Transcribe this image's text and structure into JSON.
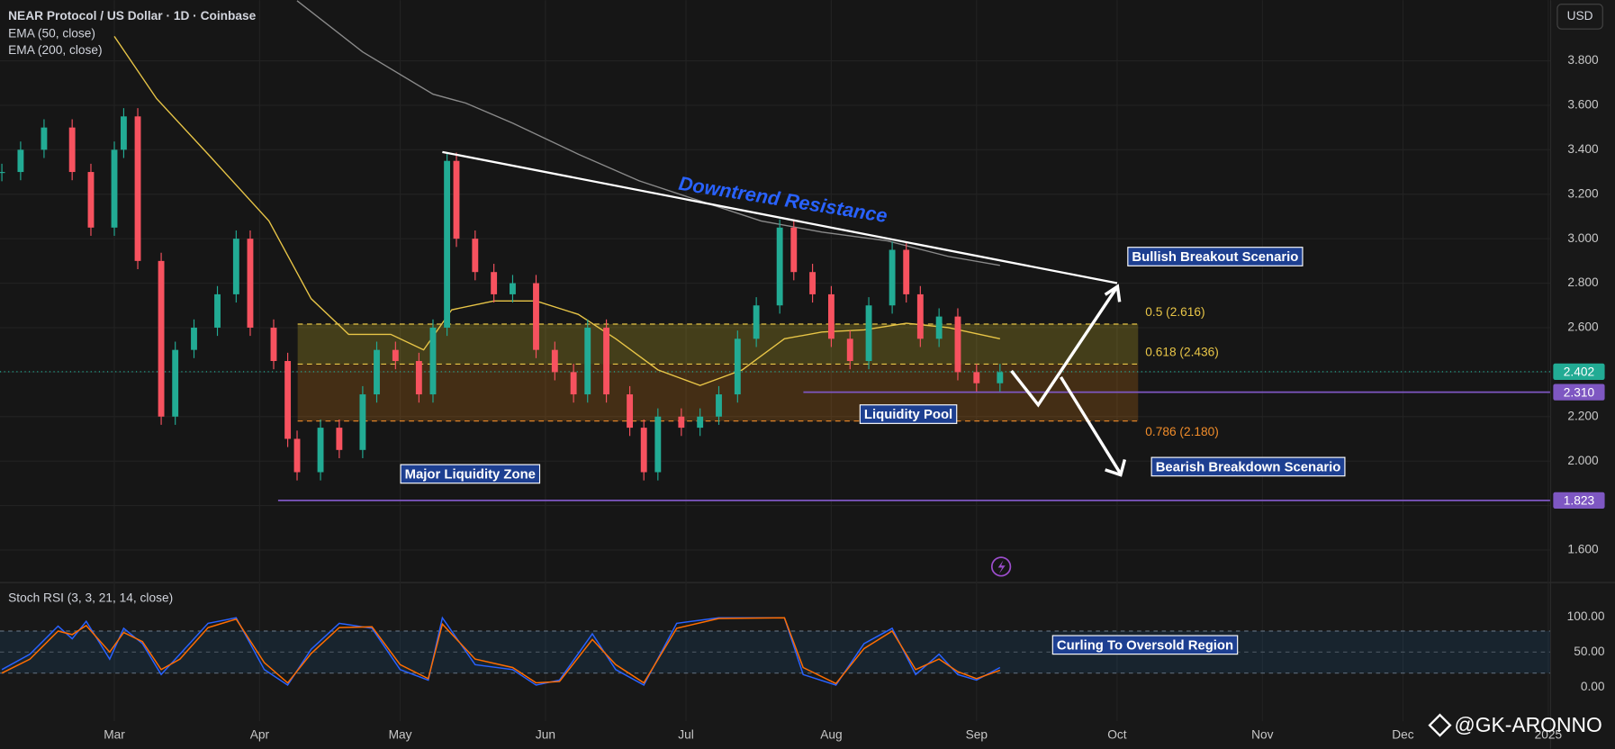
{
  "ui": {
    "currency": "USD",
    "watermark": "@GK-ARONNO"
  },
  "chart_data": [
    {
      "type": "candlestick",
      "title": "NEAR Protocol / US Dollar · 1D · Coinbase",
      "xlim": [
        -24.4,
        306.4
      ],
      "xticks": [
        {
          "value": 0,
          "label": "Mar"
        },
        {
          "value": 31,
          "label": "Apr"
        },
        {
          "value": 61,
          "label": "May"
        },
        {
          "value": 92,
          "label": "Jun"
        },
        {
          "value": 122,
          "label": "Jul"
        },
        {
          "value": 153,
          "label": "Aug"
        },
        {
          "value": 184,
          "label": "Sep"
        },
        {
          "value": 214,
          "label": "Oct"
        },
        {
          "value": 245,
          "label": "Nov"
        },
        {
          "value": 275,
          "label": "Dec"
        },
        {
          "value": 306,
          "label": "2025"
        }
      ],
      "ylim": [
        1.456,
        4.073
      ],
      "yticks": [
        {
          "value": 1.6,
          "label": "1.600"
        },
        {
          "value": 1.8,
          "label": "1.800"
        },
        {
          "value": 2.0,
          "label": "2.000"
        },
        {
          "value": 2.2,
          "label": "2.200"
        },
        {
          "value": 2.4,
          "label": "2.400"
        },
        {
          "value": 2.6,
          "label": "2.600"
        },
        {
          "value": 2.8,
          "label": "2.800"
        },
        {
          "value": 3.0,
          "label": "3.000"
        },
        {
          "value": 3.2,
          "label": "3.200"
        },
        {
          "value": 3.4,
          "label": "3.400"
        },
        {
          "value": 3.6,
          "label": "3.600"
        },
        {
          "value": 3.8,
          "label": "3.800"
        }
      ],
      "grid": true,
      "up_color": "#22ab94",
      "down_color": "#f7525f",
      "x": [
        -24,
        -20,
        -15,
        -9,
        -5,
        0,
        2,
        5,
        10,
        13,
        17,
        22,
        26,
        29,
        34,
        37,
        39,
        44,
        48,
        53,
        56,
        60,
        65,
        68,
        71,
        73,
        77,
        81,
        85,
        90,
        94,
        98,
        101,
        105,
        110,
        113,
        116,
        121,
        125,
        129,
        133,
        137,
        142,
        145,
        149,
        153,
        157,
        161,
        166,
        169,
        172,
        176,
        180,
        184,
        189
      ],
      "close": [
        3.3,
        3.4,
        3.5,
        3.3,
        3.05,
        3.4,
        3.55,
        2.9,
        2.2,
        2.5,
        2.6,
        2.75,
        3.0,
        2.6,
        2.45,
        2.1,
        1.95,
        2.15,
        2.05,
        2.3,
        2.5,
        2.45,
        2.3,
        2.6,
        3.35,
        3.0,
        2.85,
        2.75,
        2.8,
        2.5,
        2.4,
        2.3,
        2.6,
        2.3,
        2.15,
        1.95,
        2.2,
        2.15,
        2.2,
        2.3,
        2.55,
        2.7,
        3.05,
        2.85,
        2.75,
        2.55,
        2.45,
        2.7,
        2.95,
        2.75,
        2.55,
        2.65,
        2.4,
        2.35,
        2.4
      ],
      "lines": [
        {
          "name": "EMA (50, close)",
          "color": "#e8c547",
          "x": [
            0,
            9,
            20,
            33,
            42,
            50,
            59,
            66,
            72,
            81,
            90,
            99,
            107,
            116,
            125,
            134,
            143,
            151,
            160,
            169,
            178,
            189
          ],
          "values": [
            3.91,
            3.63,
            3.38,
            3.08,
            2.73,
            2.57,
            2.57,
            2.5,
            2.68,
            2.72,
            2.72,
            2.66,
            2.55,
            2.41,
            2.34,
            2.41,
            2.55,
            2.58,
            2.59,
            2.62,
            2.6,
            2.55
          ]
        },
        {
          "name": "EMA (200, close)",
          "color": "#8a8a8a",
          "x": [
            39,
            53,
            68,
            75,
            85,
            99,
            112,
            125,
            138,
            151,
            165,
            178,
            189
          ],
          "values": [
            4.07,
            3.84,
            3.65,
            3.61,
            3.52,
            3.38,
            3.26,
            3.17,
            3.08,
            3.03,
            2.99,
            2.92,
            2.88
          ]
        }
      ],
      "fib_levels": [
        {
          "value": 2.616,
          "label": "0.5 (2.616)",
          "color": "#e8c547"
        },
        {
          "value": 2.436,
          "label": "0.618 (2.436)",
          "color": "#e8c547"
        },
        {
          "value": 2.18,
          "label": "0.786 (2.180)",
          "color": "#f08c2a"
        }
      ],
      "levels": [
        {
          "value": 2.31,
          "label": "2.310",
          "color": "#7e57c2"
        },
        {
          "value": 1.823,
          "label": "1.823",
          "color": "#7e57c2"
        }
      ],
      "last_price": {
        "value": 2.402,
        "label": "2.402",
        "color": "#22ab94"
      },
      "trendline": {
        "label": "Downtrend Resistance",
        "x": [
          70,
          214
        ],
        "values": [
          3.39,
          2.8
        ]
      },
      "annotations": [
        "Bullish Breakout Scenario",
        "Bearish Breakdown Scenario",
        "Liquidity Pool",
        "Major Liquidity Zone"
      ]
    },
    {
      "type": "line",
      "title": "Stoch RSI (3, 3, 21, 14, close)",
      "ylim": [
        -48.5,
        148.5
      ],
      "yticks": [
        {
          "value": 100,
          "label": "100.00"
        },
        {
          "value": 50,
          "label": "50.00"
        },
        {
          "value": 0,
          "label": "0.00"
        }
      ],
      "band": [
        20,
        80
      ],
      "x": [
        -24,
        -18,
        -12,
        -9,
        -6,
        -1,
        2,
        6,
        10,
        14,
        20,
        26,
        32,
        37,
        42,
        48,
        55,
        61,
        67,
        70,
        77,
        85,
        90,
        95,
        102,
        107,
        113,
        120,
        129,
        143,
        147,
        154,
        160,
        166,
        171,
        176,
        180,
        184,
        189
      ],
      "series": [
        {
          "color": "#2962ff",
          "values": [
            25,
            47,
            87,
            69,
            94,
            40,
            84,
            62,
            18,
            47,
            91,
            99,
            25,
            3,
            54,
            91,
            84,
            25,
            10,
            99,
            32,
            25,
            3,
            10,
            76,
            25,
            3,
            91,
            99,
            99,
            18,
            3,
            62,
            84,
            18,
            47,
            18,
            10,
            28
          ]
        },
        {
          "color": "#ff6d00",
          "values": [
            20,
            40,
            80,
            75,
            88,
            50,
            78,
            65,
            25,
            40,
            85,
            97,
            35,
            6,
            48,
            85,
            86,
            32,
            12,
            90,
            40,
            28,
            6,
            8,
            68,
            32,
            6,
            84,
            98,
            99,
            28,
            5,
            55,
            80,
            25,
            40,
            22,
            12,
            24
          ]
        }
      ],
      "annotations": [
        "Curling To Oversold Region"
      ]
    }
  ]
}
